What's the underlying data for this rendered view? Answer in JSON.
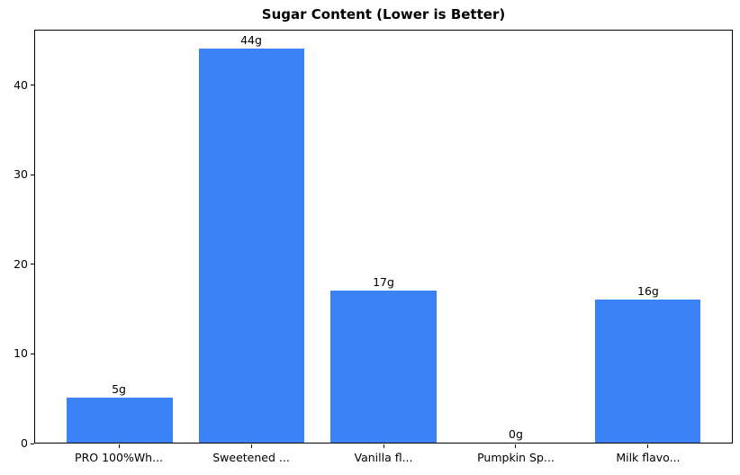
{
  "chart_data": {
    "type": "bar",
    "title": "Sugar Content (Lower is Better)",
    "categories": [
      "PRO 100%Wh...",
      "Sweetened ...",
      "Vanilla fl...",
      "Pumpkin Sp...",
      "Milk flavo..."
    ],
    "values": [
      5,
      44,
      17,
      0,
      16
    ],
    "value_labels": [
      "5g",
      "44g",
      "17g",
      "0g",
      "16g"
    ],
    "unit": "g",
    "xlabel": "",
    "ylabel": "",
    "yticks": [
      0,
      10,
      20,
      30,
      40
    ],
    "ylim": [
      0,
      46.2
    ],
    "grid": false,
    "legend": null,
    "bar_color": "#3b82f6",
    "axis_color": "#000000",
    "text_color": "#000000",
    "background_color": "#ffffff"
  }
}
